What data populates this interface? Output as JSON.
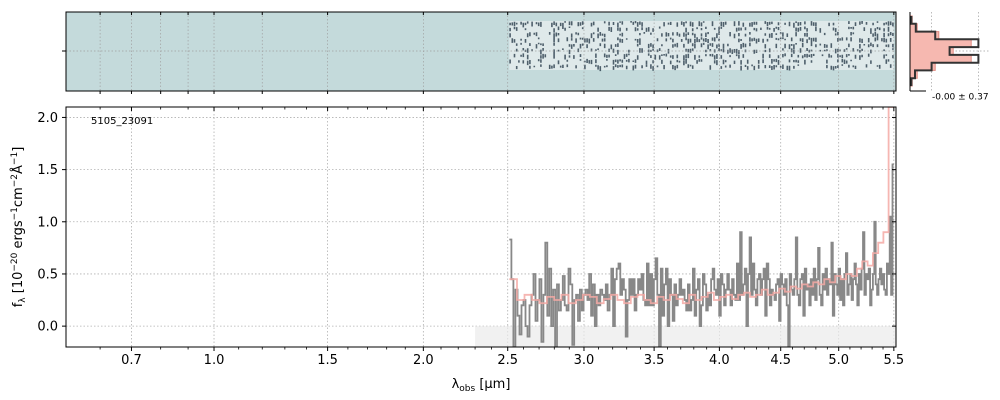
{
  "chart_data": [
    {
      "panel": "2d-spectrum",
      "type": "heatmap",
      "colormap": "bone-like (pale teal background, dark streaks)",
      "data_start_um": 2.51,
      "data_end_um": 5.5,
      "x_tick_um": [
        0.6,
        0.7,
        0.8,
        0.9,
        1.0,
        1.2,
        1.5,
        2.0,
        2.5,
        3.0,
        3.5,
        4.0,
        4.5,
        5.0,
        5.5
      ],
      "background_color": "#c4dadb",
      "streak_color": "#1d3040"
    },
    {
      "panel": "cross-dispersion-profile",
      "type": "line",
      "label": "-0.00 ± 0.37",
      "line_color": "#333333",
      "fill_color": "#f6b8b0",
      "steps": [
        0.02,
        0.08,
        0.35,
        0.95,
        0.55,
        0.95,
        0.3,
        0.07,
        0.02
      ],
      "model": [
        0.03,
        0.1,
        0.4,
        0.85,
        0.6,
        0.85,
        0.35,
        0.1,
        0.03
      ]
    },
    {
      "panel": "1d-spectrum",
      "type": "line",
      "annotation": "5105_23091",
      "xlabel_main": "λ",
      "xlabel_sub": "obs",
      "xlabel_unit": " [μm]",
      "ylabel_main": "f",
      "ylabel_sub": "λ",
      "ylabel_rest": " [10",
      "ylabel_exp": "−20",
      "ylabel_units": " ergs",
      "ylabel_exp2": "−1",
      "ylabel_cm": "cm",
      "ylabel_exp3": "−2",
      "ylabel_A": "Å",
      "ylabel_exp4": "−1",
      "ylabel_end": "]",
      "x_scale": "approximately sqrt of wavelength",
      "x_ticks": [
        0.7,
        1.0,
        1.5,
        2.0,
        2.5,
        3.0,
        3.5,
        4.0,
        4.5,
        5.0,
        5.5
      ],
      "x_tick_labels": [
        "0.7",
        "1.0",
        "1.5",
        "2.0",
        "2.5",
        "3.0",
        "3.5",
        "4.0",
        "4.5",
        "5.0",
        "5.5"
      ],
      "x_minor_ticks": [
        0.6,
        0.8,
        0.9,
        1.1,
        1.2,
        1.3,
        1.4,
        1.6,
        1.7,
        1.8,
        1.9,
        2.1,
        2.2,
        2.3,
        2.4,
        2.6,
        2.7,
        2.8,
        2.9,
        3.1,
        3.2,
        3.3,
        3.4,
        3.6,
        3.7,
        3.8,
        3.9,
        4.1,
        4.2,
        4.3,
        4.4,
        4.6,
        4.7,
        4.8,
        4.9,
        5.1,
        5.2,
        5.3,
        5.4
      ],
      "y_ticks": [
        0.0,
        0.5,
        1.0,
        1.5,
        2.0
      ],
      "y_tick_labels": [
        "0.0",
        "0.5",
        "1.0",
        "1.5",
        "2.0"
      ],
      "ylim": [
        -0.2,
        2.1
      ],
      "grid": true,
      "shaded_region_um": [
        2.3,
        5.5
      ],
      "series": [
        {
          "role": "data",
          "color": "#888888",
          "x_start": 2.51,
          "x_end": 5.5,
          "values": [
            0.83,
            0.45,
            -0.2,
            0.35,
            0.1,
            -0.08,
            0.2,
            0.25,
            0.0,
            -0.1,
            0.2,
            0.3,
            0.5,
            0.05,
            0.25,
            0.45,
            -0.15,
            0.3,
            0.8,
            0.1,
            0.55,
            0.0,
            0.35,
            -0.2,
            0.4,
            0.15,
            0.25,
            0.48,
            0.2,
            0.15,
            0.55,
            0.4,
            -0.18,
            0.25,
            0.3,
            0.05,
            0.35,
            0.15,
            0.3,
            0.35,
            0.25,
            0.5,
            0.1,
            0.4,
            0.0,
            0.3,
            0.2,
            0.35,
            0.3,
            0.25,
            0.4,
            0.15,
            0.3,
            0.55,
            0.0,
            0.45,
            0.55,
            0.6,
            0.3,
            0.45,
            0.35,
            -0.1,
            0.25,
            0.45,
            0.3,
            0.45,
            0.15,
            0.3,
            0.45,
            0.35,
            0.5,
            0.25,
            0.2,
            0.6,
            0.2,
            0.5,
            0.2,
            0.45,
            0.65,
            0.3,
            -0.2,
            0.55,
            0.1,
            0.4,
            0.55,
            0.0,
            0.45,
            0.3,
            0.05,
            0.4,
            0.2,
            0.3,
            0.45,
            0.3,
            0.35,
            0.25,
            0.15,
            0.4,
            0.15,
            0.25,
            0.55,
            0.1,
            0.35,
            0.45,
            0.0,
            0.2,
            0.5,
            0.4,
            0.15,
            0.3,
            0.2,
            0.45,
            0.55,
            0.35,
            0.3,
            0.45,
            0.1,
            0.5,
            0.4,
            0.2,
            0.35,
            0.5,
            0.35,
            0.2,
            0.45,
            0.3,
            0.25,
            0.6,
            0.25,
            0.9,
            0.3,
            0.4,
            0.55,
            0.0,
            0.5,
            0.85,
            0.3,
            0.6,
            0.35,
            0.2,
            0.45,
            0.5,
            0.3,
            0.45,
            0.55,
            0.1,
            0.6,
            0.45,
            0.2,
            0.35,
            0.3,
            0.25,
            0.4,
            0.45,
            0.05,
            0.5,
            0.4,
            0.3,
            0.45,
            0.2,
            -0.2,
            0.5,
            0.35,
            0.3,
            0.45,
            0.85,
            0.3,
            0.2,
            0.45,
            0.5,
            0.1,
            0.55,
            0.35,
            0.4,
            0.2,
            0.45,
            0.3,
            0.55,
            0.25,
            0.45,
            0.75,
            0.3,
            0.2,
            0.5,
            0.35,
            0.55,
            0.3,
            0.45,
            0.4,
            0.8,
            0.1,
            0.5,
            0.4,
            0.3,
            0.55,
            0.25,
            0.45,
            0.2,
            0.5,
            0.7,
            0.3,
            0.4,
            0.5,
            0.25,
            0.45,
            0.6,
            0.4,
            0.2,
            0.5,
            0.35,
            0.55,
            0.9,
            0.3,
            0.5,
            0.45,
            0.55,
            0.2,
            0.35,
            0.5,
            1.0,
            0.4,
            0.3,
            0.45,
            0.55,
            0.4,
            0.5,
            0.35,
            0.3,
            0.6,
            0.5,
            1.05,
            0.3,
            1.55
          ]
        },
        {
          "role": "model",
          "color": "#f4a9a5",
          "x_start": 2.51,
          "x_end": 5.5,
          "values": [
            0.45,
            0.25,
            0.3,
            0.25,
            0.22,
            0.28,
            0.25,
            0.3,
            0.22,
            0.25,
            0.3,
            0.28,
            0.22,
            0.26,
            0.3,
            0.25,
            0.22,
            0.28,
            0.3,
            0.25,
            0.22,
            0.28,
            0.25,
            0.3,
            0.26,
            0.22,
            0.3,
            0.25,
            0.28,
            0.32,
            0.25,
            0.28,
            0.3,
            0.26,
            0.3,
            0.32,
            0.28,
            0.3,
            0.35,
            0.3,
            0.32,
            0.36,
            0.33,
            0.38,
            0.36,
            0.4,
            0.38,
            0.42,
            0.4,
            0.45,
            0.42,
            0.48,
            0.45,
            0.5,
            0.48,
            0.55,
            0.62,
            0.58,
            0.7,
            0.8,
            0.9,
            2.1
          ]
        }
      ]
    }
  ]
}
